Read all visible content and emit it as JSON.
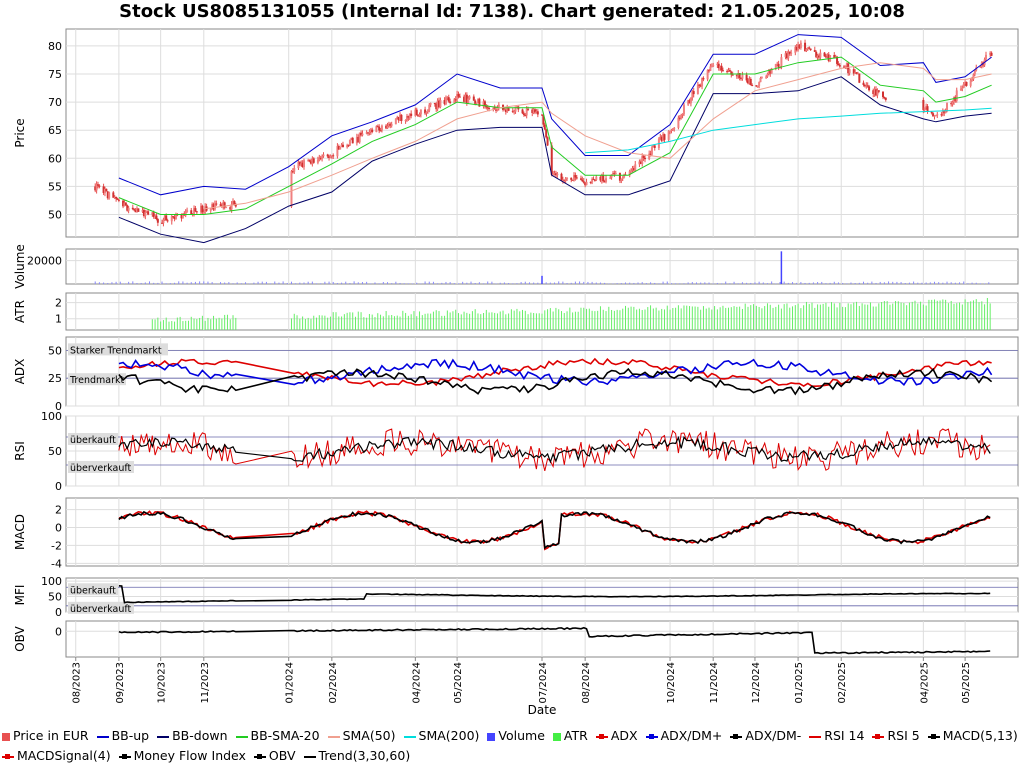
{
  "title": "Stock US8085131055 (Internal Id: 7138). Chart generated: 21.05.2025, 10:08",
  "xlabel": "Date",
  "x_ticks": [
    "08/2023",
    "09/2023",
    "10/2023",
    "11/2023",
    "01/2024",
    "02/2024",
    "04/2024",
    "05/2024",
    "07/2024",
    "08/2024",
    "10/2024",
    "11/2024",
    "12/2024",
    "01/2025",
    "02/2025",
    "04/2025",
    "05/2025"
  ],
  "panels": {
    "price": {
      "ylabel": "Price",
      "ticks": [
        "80",
        "75",
        "70",
        "65",
        "60",
        "55",
        "50"
      ]
    },
    "volume": {
      "ylabel": "Volume",
      "ticks": [
        "20000"
      ]
    },
    "atr": {
      "ylabel": "ATR",
      "ticks": [
        "2",
        "1"
      ]
    },
    "adx": {
      "ylabel": "ADX",
      "ticks": [
        "50",
        "25",
        "0"
      ],
      "ref_strong": "Starker Trendmarkt",
      "ref_trend": "Trendmarkt"
    },
    "rsi": {
      "ylabel": "RSI",
      "ticks": [
        "100",
        "50",
        "0"
      ],
      "ref_over": "überkauft",
      "ref_under": "überverkauft"
    },
    "macd": {
      "ylabel": "MACD",
      "ticks": [
        "2",
        "0",
        "-2",
        "-4"
      ]
    },
    "mfi": {
      "ylabel": "MFI",
      "ticks": [
        "100",
        "50",
        "0"
      ],
      "ref_over": "überkauft",
      "ref_under": "überverkauft"
    },
    "obv": {
      "ylabel": "OBV",
      "ticks": [
        "0"
      ]
    }
  },
  "legend": [
    {
      "label": "Price in EUR",
      "color": "#e85050",
      "kind": "box"
    },
    {
      "label": "BB-up",
      "color": "#0000cc",
      "kind": "line"
    },
    {
      "label": "BB-down",
      "color": "#000066",
      "kind": "line"
    },
    {
      "label": "BB-SMA-20",
      "color": "#22cc22",
      "kind": "line"
    },
    {
      "label": "SMA(50)",
      "color": "#f0a090",
      "kind": "line"
    },
    {
      "label": "SMA(200)",
      "color": "#00dddd",
      "kind": "line"
    },
    {
      "label": "Volume",
      "color": "#4444ff",
      "kind": "box"
    },
    {
      "label": "ATR",
      "color": "#44ee44",
      "kind": "box"
    },
    {
      "label": "ADX",
      "color": "#dd0000",
      "kind": "dot"
    },
    {
      "label": "ADX/DM+",
      "color": "#0000dd",
      "kind": "dot"
    },
    {
      "label": "ADX/DM-",
      "color": "#000000",
      "kind": "dot"
    },
    {
      "label": "RSI 14",
      "color": "#dd0000",
      "kind": "line"
    },
    {
      "label": "RSI 5",
      "color": "#dd0000",
      "kind": "dot"
    },
    {
      "label": "MACD(5,13)",
      "color": "#000000",
      "kind": "dot"
    },
    {
      "label": "MACDSignal(4)",
      "color": "#dd0000",
      "kind": "dot"
    },
    {
      "label": "Money Flow Index",
      "color": "#000000",
      "kind": "dot"
    },
    {
      "label": "OBV",
      "color": "#000000",
      "kind": "dot"
    },
    {
      "label": "Trend(3,30,60)",
      "color": "#000000",
      "kind": "line"
    }
  ],
  "chart_data": {
    "type": "line",
    "title": "Stock US8085131055 (Internal Id: 7138). Chart generated: 21.05.2025, 10:08",
    "xlabel": "Date",
    "ylabel": "Price",
    "x": [
      "2023-08-15",
      "2023-09-01",
      "2023-10-01",
      "2023-11-01",
      "2023-12-01",
      "2024-01-01",
      "2024-02-01",
      "2024-03-01",
      "2024-04-01",
      "2024-05-01",
      "2024-06-01",
      "2024-07-01",
      "2024-07-08",
      "2024-08-01",
      "2024-09-01",
      "2024-10-01",
      "2024-11-01",
      "2024-12-01",
      "2025-01-01",
      "2025-02-01",
      "2025-03-01",
      "2025-04-01",
      "2025-04-10",
      "2025-05-01",
      "2025-05-20"
    ],
    "series": [
      {
        "name": "Price in EUR",
        "values": [
          55,
          52,
          49,
          51,
          52,
          58,
          61,
          65,
          68,
          71,
          69,
          68,
          57,
          56,
          57,
          65,
          77,
          73,
          80,
          77,
          71,
          69,
          67,
          73,
          79
        ]
      },
      {
        "name": "BB-SMA-20",
        "values": [
          null,
          53,
          50,
          50,
          51,
          55,
          59,
          63,
          66,
          70,
          69,
          69,
          62,
          57,
          57,
          61,
          75,
          75,
          77,
          78,
          73,
          72,
          70,
          71,
          73
        ]
      },
      {
        "name": "SMA(50)",
        "values": [
          null,
          null,
          null,
          51,
          52,
          54,
          57,
          60,
          63,
          67,
          69,
          70,
          68,
          64,
          61,
          60,
          67,
          72,
          74,
          76,
          77,
          76,
          74,
          74,
          75
        ]
      },
      {
        "name": "SMA(200)",
        "values": [
          null,
          null,
          null,
          null,
          null,
          null,
          null,
          null,
          null,
          null,
          null,
          null,
          null,
          61,
          61.5,
          63,
          65,
          66,
          67,
          67.5,
          68,
          68.3,
          68.4,
          68.6,
          68.9
        ]
      }
    ],
    "ylim": [
      46,
      83
    ],
    "volume_spikes": [
      {
        "date": "2024-07-01",
        "value": 7000
      },
      {
        "date": "2024-12-20",
        "value": 28000
      }
    ],
    "grid": true,
    "legend_position": "bottom"
  }
}
